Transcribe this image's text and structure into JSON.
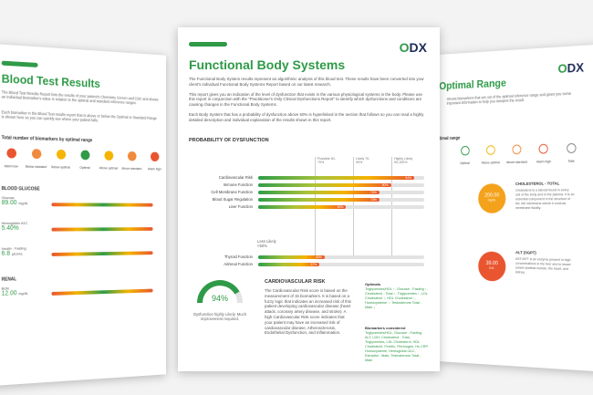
{
  "left_page": {
    "title": "Blood Test Results",
    "intro": "The Blood Test Results Report lists the results of your patient's Chemistry Screen and CBC and shows an individual biomarker's value in relation to the optimal and standard reference ranges.",
    "intro2": "Each biomarker in the Blood Test results report that is above or below the Optimal or Standard Range is shown here so you can quickly see where your patient falls.",
    "legend_heading": "Total number of biomarkers by optimal range",
    "legend": [
      "Alarm low",
      "Below standard",
      "Below optimal",
      "Optimal",
      "Above optimal",
      "Above standard",
      "Alarm high"
    ],
    "sections": [
      {
        "name": "BLOOD GLUCOSE",
        "items": [
          {
            "label": "Glucose",
            "value": "89.00",
            "unit": "mg/dL"
          },
          {
            "label": "Hemoglobin A1C",
            "value": "5.40%",
            "unit": ""
          },
          {
            "label": "Insulin - Fasting",
            "value": "6.8",
            "unit": "µIU/mL"
          }
        ]
      },
      {
        "name": "RENAL",
        "items": [
          {
            "label": "BUN",
            "value": "12.00",
            "unit": "mg/dL"
          }
        ]
      }
    ]
  },
  "center_page": {
    "logo": "ODX",
    "title": "Functional Body Systems",
    "paragraphs": [
      "The Functional Body System results represent an algorithmic analysis of this blood test. These results have been converted into your client's individual Functional Body Systems Report based on our latest research.",
      "This report gives you an indication of the level of dysfunction that exists in the various physiological systems in the body. Please use this report in conjunction with the \"Practitioner's Only Clinical Dysfunctions Report\" to identify which dysfunctions and conditions are causing changes in the Functional Body Systems.",
      "Each Body System that has a probability of dysfunction above 50% is hyperlinked in the section that follows so you can read a highly detailed description and individual explanation of the results shown in this report."
    ],
    "section_heading": "PROBABILITY OF DYSFUNCTION",
    "columns": [
      "Possible 50-70%",
      "Likely 70-90%",
      "Highly Likely 90-100%"
    ],
    "bars": [
      {
        "label": "Cardiovascular Risk",
        "value": 94,
        "text": "94%"
      },
      {
        "label": "Immune Function",
        "value": 80,
        "text": "80%"
      },
      {
        "label": "Cell Membrane Function",
        "value": 73,
        "text": "73%"
      },
      {
        "label": "Blood Sugar Regulation",
        "value": 73,
        "text": "73%"
      },
      {
        "label": "Liver Function",
        "value": 53,
        "text": "53%"
      }
    ],
    "less_likely": "Less Likely <50%",
    "bars_low": [
      {
        "label": "Thyroid Function",
        "value": 40,
        "text": "40%"
      },
      {
        "label": "Adrenal Function",
        "value": 37,
        "text": "37%"
      }
    ],
    "gauge": "94%",
    "gauge_caption": "Dysfunction highly Likely. Much improvement required.",
    "risk_heading": "CARDIOVASCULAR RISK",
    "risk_text": "The Cardiovascular Risk score is based on the measurement of 15 biomarkers. It is based on a fuzzy logic that indicates an increased risk of this patient developing cardiovascular disease (heart attack, coronary artery disease, and stroke). A high Cardiovascular Risk score indicates that your patient may have an increased risk of cardiovascular disease, Atherosclerosis, Endothelial Dysfunction, and Inflammation.",
    "side_heading": "Optimals",
    "side_text": "Triglycerides/HDL ↑, Glucose - Fasting ↑, Cholesterol - Total ↑, Triglycerides ↑, LDL Cholesterol ↑, HDL Cholesterol ↓, Homocysteine ↑, Testosterone Total - Male ↓",
    "side_heading2": "Biomarkers considered",
    "side_text2": "Triglycerides/HDL, Glucose - Fasting, ALT, LDH, Cholesterol - Total, Triglycerides, LDL Cholesterol, HDL Cholesterol, Ferritin, Fibrinogen, Hs CRP, Homocysteine, Hemoglobin A1C, Estradiol - Male, Testosterone Total - Male"
  },
  "right_page": {
    "logo": "ODX",
    "title": "Optimal Range",
    "intro": "Shows biomarkers that are out of the optimal reference range and gives you some important information to help you interpret the result.",
    "legend_heading": "Total number of biomarkers by optimal range",
    "legend": [
      "Optimal",
      "Above optimal",
      "Above standard",
      "Alarm high",
      "Total"
    ],
    "items": [
      {
        "name": "CHOLESTEROL - TOTAL",
        "value": "200.00",
        "unit": "mg/dL",
        "text": "Cholesterol is a steroid found in every cell of the body and in the plasma. It is an essential component in the structure of the cell membrane where it controls membrane fluidity."
      },
      {
        "name": "ALT (SGPT)",
        "value": "39.00",
        "unit": "IU/L",
        "text": "AST/GPT is an enzyme present in high concentrations in the liver and to lesser extent skeletal muscle, the heart, and kidney."
      }
    ]
  }
}
